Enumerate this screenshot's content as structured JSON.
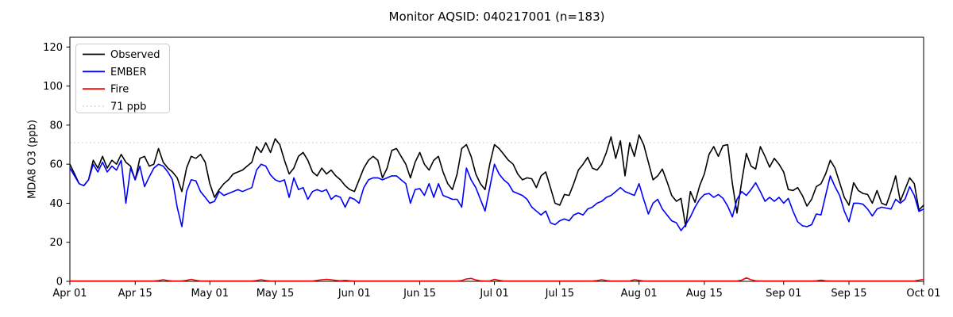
{
  "title": "Monitor AQSID: 040217001 (n=183)",
  "ylabel": "MDA8 O3 (ppb)",
  "legend": [
    {
      "label": "Observed",
      "color": "#000000",
      "dash": ""
    },
    {
      "label": "EMBER",
      "color": "#0000ff",
      "dash": ""
    },
    {
      "label": "Fire",
      "color": "#ff0000",
      "dash": ""
    },
    {
      "label": "71 ppb",
      "color": "#d3d3d3",
      "dash": "1.5,3.5"
    }
  ],
  "chart_data": {
    "type": "line",
    "title": "Monitor AQSID: 040217001 (n=183)",
    "xlabel": "",
    "ylabel": "MDA8 O3 (ppb)",
    "grid": false,
    "legend_position": "upper left",
    "ylim": [
      0,
      125
    ],
    "y_ticks": [
      0,
      20,
      40,
      60,
      80,
      100,
      120
    ],
    "x_ticks": [
      {
        "day": 0,
        "label": "Apr 01"
      },
      {
        "day": 14,
        "label": "Apr 15"
      },
      {
        "day": 30,
        "label": "May 01"
      },
      {
        "day": 44,
        "label": "May 15"
      },
      {
        "day": 61,
        "label": "Jun 01"
      },
      {
        "day": 75,
        "label": "Jun 15"
      },
      {
        "day": 91,
        "label": "Jul 01"
      },
      {
        "day": 105,
        "label": "Jul 15"
      },
      {
        "day": 122,
        "label": "Aug 01"
      },
      {
        "day": 136,
        "label": "Aug 15"
      },
      {
        "day": 153,
        "label": "Sep 01"
      },
      {
        "day": 167,
        "label": "Sep 15"
      },
      {
        "day": 183,
        "label": "Oct 01"
      }
    ],
    "threshold": {
      "label": "71 ppb",
      "value": 71,
      "color": "#d3d3d3",
      "style": "dotted"
    },
    "x_start_day": 0,
    "x_end_day": 183,
    "series": [
      {
        "name": "Observed",
        "color": "#000000",
        "values": [
          60,
          55,
          50,
          49,
          52,
          62,
          58,
          64,
          58,
          62,
          60,
          65,
          61,
          59,
          52,
          63,
          64,
          59,
          60,
          68,
          61,
          58,
          56,
          53,
          46,
          58,
          64,
          63,
          65,
          61,
          50,
          43,
          47,
          50,
          52,
          55,
          56,
          57,
          59,
          61,
          69,
          66,
          71,
          66,
          73,
          70,
          62,
          55,
          58,
          64,
          66,
          62,
          56,
          54,
          58,
          55,
          57,
          54,
          52,
          49,
          47,
          46,
          52,
          58,
          62,
          64,
          62,
          53,
          58,
          67,
          68,
          64,
          60,
          53,
          61,
          66,
          60,
          57,
          62,
          64,
          56,
          50,
          47,
          55,
          68,
          70,
          64,
          55,
          50,
          47,
          60,
          70,
          68,
          65,
          62,
          60,
          55,
          52,
          53,
          52.5,
          48,
          54,
          56,
          48,
          40,
          39,
          44.5,
          44,
          50,
          57,
          60,
          63.5,
          58,
          57,
          60,
          66,
          74,
          63,
          72,
          54,
          71,
          64,
          75,
          70,
          61,
          52,
          54,
          57.5,
          51,
          44,
          41,
          42.5,
          28,
          46,
          40.5,
          49,
          55,
          65,
          69,
          64,
          69.5,
          70,
          50,
          35,
          51,
          65.5,
          59,
          57.5,
          69,
          64,
          58.5,
          63,
          60,
          56,
          47,
          46.5,
          48,
          44,
          38.5,
          42,
          48.5,
          50,
          55,
          62,
          58,
          50.5,
          43,
          39,
          50.5,
          46.5,
          45,
          44.5,
          40,
          46.5,
          40,
          39,
          46,
          54,
          41,
          47,
          53,
          50,
          36.5,
          39
        ]
      },
      {
        "name": "EMBER",
        "color": "#0000ff",
        "values": [
          58,
          54,
          50,
          49,
          52,
          60,
          56,
          61,
          56,
          59,
          57,
          62,
          40,
          58,
          52,
          59,
          48.5,
          53.5,
          58,
          60,
          59,
          56,
          52,
          38,
          28,
          46,
          52,
          51.5,
          46,
          43,
          40,
          41,
          46,
          44,
          45,
          46,
          47,
          46,
          47,
          48,
          57,
          60,
          59,
          54.5,
          52,
          51,
          52,
          43,
          53,
          47,
          48,
          42,
          46,
          47,
          46,
          47,
          42,
          44,
          43,
          38,
          43,
          42,
          40,
          48,
          52,
          53,
          53,
          52,
          53,
          54,
          54,
          52,
          50,
          40,
          47,
          47.5,
          44,
          50,
          43,
          50,
          44,
          43,
          42,
          42,
          38,
          58,
          52,
          48,
          42,
          36,
          48,
          60,
          55,
          52,
          50,
          46,
          45,
          44,
          42,
          38,
          36,
          34,
          36,
          30,
          29,
          31,
          32,
          31,
          34,
          35,
          34,
          37,
          38,
          40,
          41,
          43,
          44,
          46,
          48,
          46,
          45,
          44,
          50,
          42,
          34.5,
          40,
          42,
          37,
          34,
          31,
          30,
          26,
          29,
          33,
          38,
          42,
          44.5,
          45,
          43,
          44.5,
          42.5,
          38.5,
          33,
          42,
          46,
          44,
          47,
          50.5,
          46,
          41,
          43,
          41,
          43,
          40,
          42.5,
          36,
          30.5,
          28.5,
          28,
          29,
          34.5,
          34,
          44,
          54,
          48.5,
          44,
          36,
          30.5,
          40,
          40,
          39.5,
          37,
          33.5,
          37,
          38,
          37.5,
          37,
          42,
          40,
          42,
          48.5,
          44,
          35.8,
          37
        ]
      },
      {
        "name": "Fire",
        "color": "#ff0000",
        "values": [
          0.2,
          0.2,
          0.2,
          0.2,
          0.2,
          0.2,
          0.2,
          0.2,
          0.2,
          0.2,
          0.2,
          0.2,
          0.2,
          0.2,
          0.2,
          0.2,
          0.2,
          0.2,
          0.2,
          0.4,
          0.8,
          0.4,
          0.2,
          0.2,
          0.2,
          0.5,
          1.0,
          0.5,
          0.2,
          0.2,
          0.2,
          0.2,
          0.2,
          0.2,
          0.2,
          0.2,
          0.2,
          0.2,
          0.2,
          0.2,
          0.4,
          0.8,
          0.4,
          0.2,
          0.2,
          0.2,
          0.2,
          0.2,
          0.2,
          0.2,
          0.2,
          0.2,
          0.2,
          0.5,
          0.8,
          1.0,
          0.8,
          0.5,
          0.3,
          0.5,
          0.3,
          0.2,
          0.2,
          0.2,
          0.2,
          0.2,
          0.2,
          0.2,
          0.2,
          0.2,
          0.2,
          0.2,
          0.2,
          0.2,
          0.2,
          0.2,
          0.2,
          0.2,
          0.2,
          0.2,
          0.2,
          0.2,
          0.2,
          0.2,
          0.4,
          1.2,
          1.5,
          0.7,
          0.3,
          0.2,
          0.2,
          1.0,
          0.5,
          0.2,
          0.2,
          0.2,
          0.2,
          0.2,
          0.2,
          0.2,
          0.2,
          0.2,
          0.2,
          0.2,
          0.2,
          0.2,
          0.2,
          0.2,
          0.2,
          0.2,
          0.2,
          0.2,
          0.2,
          0.4,
          0.8,
          0.4,
          0.2,
          0.2,
          0.2,
          0.2,
          0.2,
          0.8,
          0.5,
          0.2,
          0.2,
          0.2,
          0.2,
          0.2,
          0.2,
          0.2,
          0.2,
          0.2,
          0.2,
          0.2,
          0.2,
          0.2,
          0.2,
          0.2,
          0.2,
          0.2,
          0.2,
          0.2,
          0.2,
          0.2,
          0.6,
          1.8,
          0.8,
          0.3,
          0.2,
          0.2,
          0.2,
          0.2,
          0.2,
          0.2,
          0.2,
          0.2,
          0.2,
          0.2,
          0.2,
          0.2,
          0.3,
          0.6,
          0.3,
          0.2,
          0.2,
          0.2,
          0.2,
          0.2,
          0.2,
          0.2,
          0.2,
          0.2,
          0.2,
          0.2,
          0.2,
          0.2,
          0.2,
          0.2,
          0.2,
          0.2,
          0.2,
          0.2,
          0.6,
          1.0
        ]
      }
    ]
  }
}
